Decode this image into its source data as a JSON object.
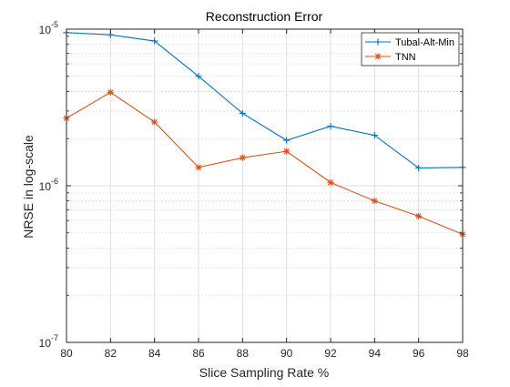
{
  "chart_data": {
    "type": "line",
    "title": "Reconstruction Error",
    "xlabel": "Slice Sampling Rate %",
    "ylabel": "NRSE in log-scale",
    "x": [
      80,
      82,
      84,
      86,
      88,
      90,
      92,
      94,
      96,
      98
    ],
    "xlim": [
      80,
      98
    ],
    "x_ticks": [
      "80",
      "82",
      "84",
      "86",
      "88",
      "90",
      "92",
      "94",
      "96",
      "98"
    ],
    "yscale": "log",
    "ylim": [
      1e-07,
      1e-05
    ],
    "y_ticks": [
      {
        "base": "10",
        "exp": "-7",
        "value": 1e-07
      },
      {
        "base": "10",
        "exp": "-6",
        "value": 1e-06
      },
      {
        "base": "10",
        "exp": "-5",
        "value": 1e-05
      }
    ],
    "grid": true,
    "minor_grid": true,
    "legend_position": "top-right",
    "series": [
      {
        "name": "Tubal-Alt-Min",
        "color": "#0072BD",
        "marker": "plus",
        "values": [
          9.5e-06,
          9.2e-06,
          8.4e-06,
          5e-06,
          2.9e-06,
          1.95e-06,
          2.4e-06,
          2.1e-06,
          1.3e-06,
          1.31e-06
        ]
      },
      {
        "name": "TNN",
        "color": "#D95319",
        "marker": "asterisk",
        "values": [
          2.7e-06,
          3.95e-06,
          2.55e-06,
          1.31e-06,
          1.51e-06,
          1.66e-06,
          1.05e-06,
          8e-07,
          6.4e-07,
          4.9e-07
        ]
      }
    ]
  }
}
